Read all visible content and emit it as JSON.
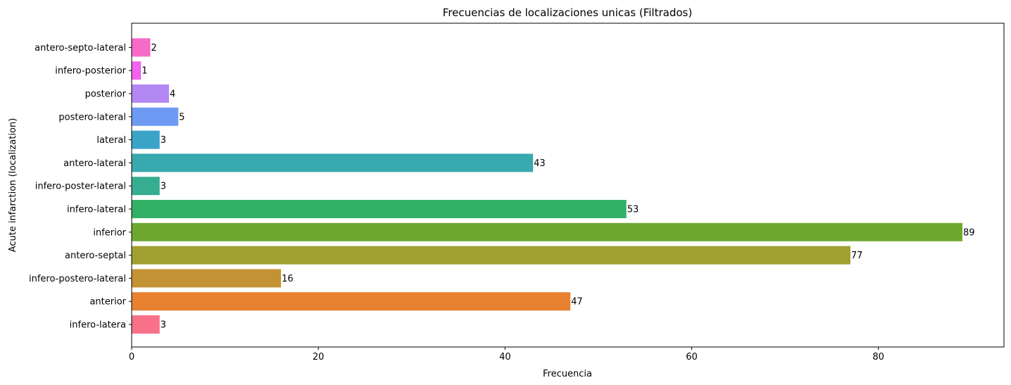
{
  "chart_data": {
    "type": "bar",
    "orientation": "horizontal",
    "title": "Frecuencias de localizaciones unicas (Filtrados)",
    "xlabel": "Frecuencia",
    "ylabel": "Acute infarction (localization)",
    "xlim": [
      0,
      93.45
    ],
    "xticks": [
      0,
      20,
      40,
      60,
      80
    ],
    "grid": false,
    "legend": "none",
    "categories": [
      "infero-latera",
      "anterior",
      "infero-postero-lateral",
      "antero-septal",
      "inferior",
      "infero-lateral",
      "infero-poster-lateral",
      "antero-lateral",
      "lateral",
      "postero-lateral",
      "posterior",
      "infero-posterior",
      "antero-septo-lateral"
    ],
    "values": [
      3,
      47,
      16,
      77,
      89,
      53,
      3,
      43,
      3,
      5,
      4,
      1,
      2
    ],
    "colors": [
      "#f77189",
      "#e8812f",
      "#c39235",
      "#a0a031",
      "#6ea830",
      "#33b067",
      "#36ad91",
      "#38a9ae",
      "#3ba3c8",
      "#6e9af3",
      "#b488f3",
      "#f163ec",
      "#f66ac8"
    ]
  }
}
